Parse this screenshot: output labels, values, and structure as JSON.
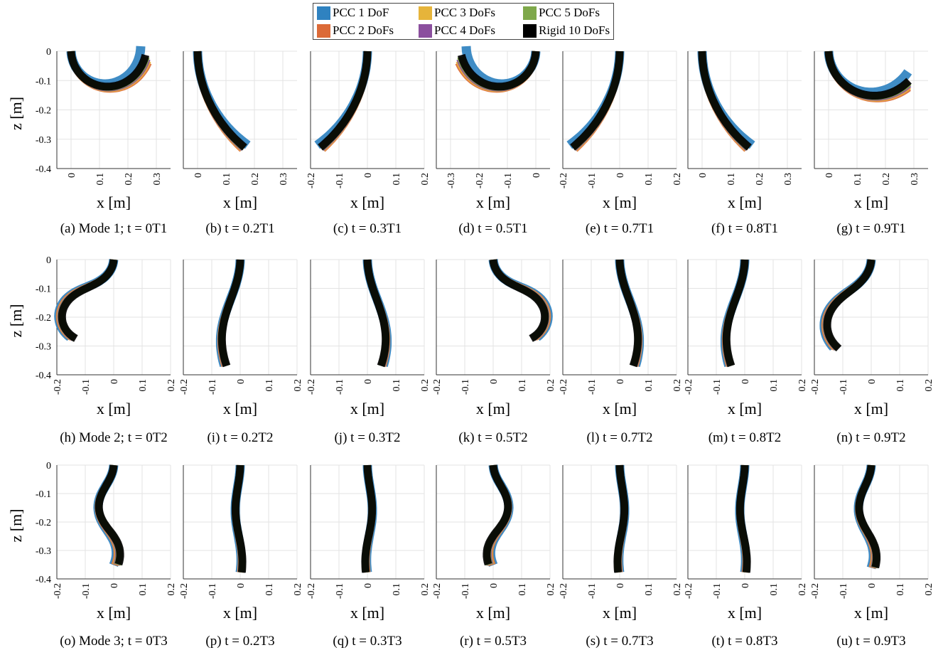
{
  "legend": [
    {
      "label": "PCC 1 DoF",
      "color": "#2f82c0"
    },
    {
      "label": "PCC 2 DoFs",
      "color": "#dc6a37"
    },
    {
      "label": "PCC 3 DoFs",
      "color": "#e6b43a"
    },
    {
      "label": "PCC 4 DoFs",
      "color": "#8b4f9e"
    },
    {
      "label": "PCC 5 DoFs",
      "color": "#7ea84a"
    },
    {
      "label": "Rigid 10 DoFs",
      "color": "#000000"
    }
  ],
  "axis_labels": {
    "x": "x [m]",
    "z": "z [m]"
  },
  "chart_data": [
    {
      "type": "line",
      "panel": "a",
      "caption": "(a) Mode 1; t = 0T1",
      "mode": 1,
      "xlim": [
        -0.05,
        0.35
      ],
      "ylim": [
        -0.4,
        0
      ],
      "xticks": [
        "0",
        "0.1",
        "0.2",
        "0.3"
      ],
      "yticks": [
        "0",
        "-0.1",
        "-0.2",
        "-0.3",
        "-0.4"
      ],
      "grid": true
    },
    {
      "type": "line",
      "panel": "b",
      "caption": "(b) t = 0.2T1",
      "mode": 1,
      "xlim": [
        -0.05,
        0.35
      ],
      "ylim": [
        -0.4,
        0
      ],
      "xticks": [
        "0",
        "0.1",
        "0.2",
        "0.3"
      ],
      "grid": true
    },
    {
      "type": "line",
      "panel": "c",
      "caption": "(c) t = 0.3T1",
      "mode": 1,
      "xlim": [
        -0.2,
        0.2
      ],
      "ylim": [
        -0.4,
        0
      ],
      "xticks": [
        "-0.2",
        "-0.1",
        "0",
        "0.1",
        "0.2"
      ],
      "grid": true
    },
    {
      "type": "line",
      "panel": "d",
      "caption": "(d) t = 0.5T1",
      "mode": 1,
      "xlim": [
        -0.35,
        0.05
      ],
      "ylim": [
        -0.4,
        0
      ],
      "xticks": [
        "-0.3",
        "-0.2",
        "-0.1",
        "0"
      ],
      "grid": true
    },
    {
      "type": "line",
      "panel": "e",
      "caption": "(e) t = 0.7T1",
      "mode": 1,
      "xlim": [
        -0.2,
        0.2
      ],
      "ylim": [
        -0.4,
        0
      ],
      "xticks": [
        "-0.2",
        "-0.1",
        "0",
        "0.1",
        "0.2"
      ],
      "grid": true
    },
    {
      "type": "line",
      "panel": "f",
      "caption": "(f) t = 0.8T1",
      "mode": 1,
      "xlim": [
        -0.05,
        0.35
      ],
      "ylim": [
        -0.4,
        0
      ],
      "xticks": [
        "0",
        "0.1",
        "0.2",
        "0.3"
      ],
      "grid": true
    },
    {
      "type": "line",
      "panel": "g",
      "caption": "(g) t = 0.9T1",
      "mode": 1,
      "xlim": [
        -0.05,
        0.35
      ],
      "ylim": [
        -0.4,
        0
      ],
      "xticks": [
        "0",
        "0.1",
        "0.2",
        "0.3"
      ],
      "grid": true
    },
    {
      "type": "line",
      "panel": "h",
      "caption": "(h) Mode 2; t = 0T2",
      "mode": 2,
      "xlim": [
        -0.2,
        0.2
      ],
      "ylim": [
        -0.4,
        0
      ],
      "xticks": [
        "-0.2",
        "-0.1",
        "0",
        "0.1",
        "0.2"
      ],
      "yticks": [
        "0",
        "-0.1",
        "-0.2",
        "-0.3",
        "-0.4"
      ],
      "grid": true
    },
    {
      "type": "line",
      "panel": "i",
      "caption": "(i) t = 0.2T2",
      "mode": 2,
      "xlim": [
        -0.2,
        0.2
      ],
      "ylim": [
        -0.4,
        0
      ],
      "xticks": [
        "-0.2",
        "-0.1",
        "0",
        "0.1",
        "0.2"
      ],
      "grid": true
    },
    {
      "type": "line",
      "panel": "j",
      "caption": "(j) t = 0.3T2",
      "mode": 2,
      "xlim": [
        -0.2,
        0.2
      ],
      "ylim": [
        -0.4,
        0
      ],
      "xticks": [
        "-0.2",
        "-0.1",
        "0",
        "0.1",
        "0.2"
      ],
      "grid": true
    },
    {
      "type": "line",
      "panel": "k",
      "caption": "(k) t = 0.5T2",
      "mode": 2,
      "xlim": [
        -0.2,
        0.2
      ],
      "ylim": [
        -0.4,
        0
      ],
      "xticks": [
        "-0.2",
        "-0.1",
        "0",
        "0.1",
        "0.2"
      ],
      "grid": true
    },
    {
      "type": "line",
      "panel": "l",
      "caption": "(l) t = 0.7T2",
      "mode": 2,
      "xlim": [
        -0.2,
        0.2
      ],
      "ylim": [
        -0.4,
        0
      ],
      "xticks": [
        "-0.2",
        "-0.1",
        "0",
        "0.1",
        "0.2"
      ],
      "grid": true
    },
    {
      "type": "line",
      "panel": "m",
      "caption": "(m) t = 0.8T2",
      "mode": 2,
      "xlim": [
        -0.2,
        0.2
      ],
      "ylim": [
        -0.4,
        0
      ],
      "xticks": [
        "-0.2",
        "-0.1",
        "0",
        "0.1",
        "0.2"
      ],
      "grid": true
    },
    {
      "type": "line",
      "panel": "n",
      "caption": "(n) t = 0.9T2",
      "mode": 2,
      "xlim": [
        -0.2,
        0.2
      ],
      "ylim": [
        -0.4,
        0
      ],
      "xticks": [
        "-0.2",
        "-0.1",
        "0",
        "0.1",
        "0.2"
      ],
      "grid": true
    },
    {
      "type": "line",
      "panel": "o",
      "caption": "(o) Mode 3; t = 0T3",
      "mode": 3,
      "xlim": [
        -0.2,
        0.2
      ],
      "ylim": [
        -0.4,
        0
      ],
      "xticks": [
        "-0.2",
        "-0.1",
        "0",
        "0.1",
        "0.2"
      ],
      "yticks": [
        "0",
        "-0.1",
        "-0.2",
        "-0.3",
        "-0.4"
      ],
      "grid": true
    },
    {
      "type": "line",
      "panel": "p",
      "caption": "(p) t = 0.2T3",
      "mode": 3,
      "xlim": [
        -0.2,
        0.2
      ],
      "ylim": [
        -0.4,
        0
      ],
      "xticks": [
        "-0.2",
        "-0.1",
        "0",
        "0.1",
        "0.2"
      ],
      "grid": true
    },
    {
      "type": "line",
      "panel": "q",
      "caption": "(q) t = 0.3T3",
      "mode": 3,
      "xlim": [
        -0.2,
        0.2
      ],
      "ylim": [
        -0.4,
        0
      ],
      "xticks": [
        "-0.2",
        "-0.1",
        "0",
        "0.1",
        "0.2"
      ],
      "grid": true
    },
    {
      "type": "line",
      "panel": "r",
      "caption": "(r) t = 0.5T3",
      "mode": 3,
      "xlim": [
        -0.2,
        0.2
      ],
      "ylim": [
        -0.4,
        0
      ],
      "xticks": [
        "-0.2",
        "-0.1",
        "0",
        "0.1",
        "0.2"
      ],
      "grid": true
    },
    {
      "type": "line",
      "panel": "s",
      "caption": "(s) t = 0.7T3",
      "mode": 3,
      "xlim": [
        -0.2,
        0.2
      ],
      "ylim": [
        -0.4,
        0
      ],
      "xticks": [
        "-0.2",
        "-0.1",
        "0",
        "0.1",
        "0.2"
      ],
      "grid": true
    },
    {
      "type": "line",
      "panel": "t",
      "caption": "(t) t = 0.8T3",
      "mode": 3,
      "xlim": [
        -0.2,
        0.2
      ],
      "ylim": [
        -0.4,
        0
      ],
      "xticks": [
        "-0.2",
        "-0.1",
        "0",
        "0.1",
        "0.2"
      ],
      "grid": true
    },
    {
      "type": "line",
      "panel": "u",
      "caption": "(u) t = 0.9T3",
      "mode": 3,
      "xlim": [
        -0.2,
        0.2
      ],
      "ylim": [
        -0.4,
        0
      ],
      "xticks": [
        "-0.2",
        "-0.1",
        "0",
        "0.1",
        "0.2"
      ],
      "grid": true
    }
  ]
}
